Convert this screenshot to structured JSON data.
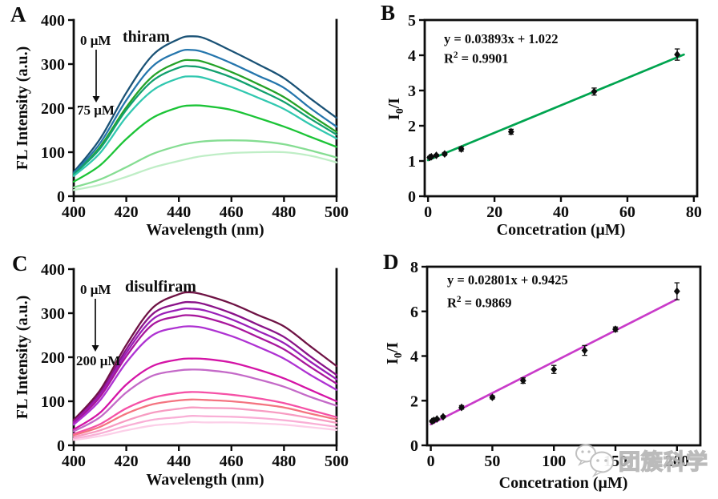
{
  "watermark": {
    "text": "团簇科学",
    "icon": "chat-bubbles-icon",
    "color": "#b6b6b6"
  },
  "panels": [
    {
      "label": "A",
      "title": "thiram",
      "conc_start": "0 μM",
      "conc_end": "75 μM",
      "xlabel": "Wavelength (nm)",
      "ylabel": "FL Intensity (a.u.)"
    },
    {
      "label": "B",
      "equation": "y = 0.03893x + 1.022",
      "r2_prefix": "R",
      "r2_sup": "2",
      "r2_rest": " = 0.9901",
      "xlabel": "Concetration (μM)",
      "ylabel_pre": "I",
      "ylabel_sub": "0",
      "ylabel_post": "/I"
    },
    {
      "label": "C",
      "title": "disulfiram",
      "conc_start": "0 μM",
      "conc_end": "200 μM",
      "xlabel": "Wavelength (nm)",
      "ylabel": "FL Intensity (a.u.)"
    },
    {
      "label": "D",
      "equation": "y = 0.02801x + 0.9425",
      "r2_prefix": "R",
      "r2_sup": "2",
      "r2_rest": " = 0.9869",
      "xlabel": "Concetration (μM)",
      "ylabel_pre": "I",
      "ylabel_sub": "0",
      "ylabel_post": "/I"
    }
  ],
  "chart_data": [
    {
      "id": "A",
      "type": "line",
      "title": "thiram",
      "xlabel": "Wavelength (nm)",
      "ylabel": "FL Intensity (a.u.)",
      "xlim": [
        400,
        500
      ],
      "ylim": [
        0,
        400
      ],
      "xticks": [
        400,
        420,
        440,
        460,
        480,
        500
      ],
      "yticks": [
        0,
        100,
        200,
        300,
        400
      ],
      "annotation": "0 μM to 75 μM, intensity decreasing",
      "x": [
        400,
        410,
        420,
        430,
        440,
        445,
        450,
        460,
        470,
        480,
        490,
        500
      ],
      "series": [
        {
          "color": "#1a5276",
          "values": [
            55,
            130,
            235,
            320,
            357,
            363,
            358,
            330,
            300,
            268,
            222,
            178
          ]
        },
        {
          "color": "#2576ad",
          "values": [
            52,
            120,
            218,
            295,
            328,
            332,
            326,
            302,
            274,
            246,
            200,
            158
          ]
        },
        {
          "color": "#25a228",
          "values": [
            48,
            112,
            202,
            272,
            305,
            309,
            304,
            282,
            255,
            225,
            185,
            146
          ]
        },
        {
          "color": "#12a06e",
          "values": [
            50,
            108,
            196,
            262,
            292,
            295,
            290,
            270,
            243,
            214,
            176,
            140
          ]
        },
        {
          "color": "#32c8b0",
          "values": [
            46,
            98,
            180,
            240,
            268,
            272,
            268,
            248,
            224,
            198,
            163,
            131
          ]
        },
        {
          "color": "#1cc437",
          "values": [
            33,
            70,
            130,
            178,
            202,
            206,
            205,
            196,
            178,
            158,
            135,
            112
          ]
        },
        {
          "color": "#85dd92",
          "values": [
            20,
            38,
            66,
            96,
            115,
            121,
            125,
            127,
            125,
            118,
            104,
            88
          ]
        },
        {
          "color": "#bfeec6",
          "values": [
            14,
            26,
            44,
            65,
            80,
            87,
            92,
            98,
            100,
            100,
            92,
            77
          ]
        }
      ]
    },
    {
      "id": "B",
      "type": "scatter",
      "equation": "y = 0.03893x + 1.022",
      "r_squared": 0.9901,
      "xlabel": "Concetration (μM)",
      "ylabel": "I0/I",
      "xlim": [
        0,
        80
      ],
      "ylim": [
        0,
        5
      ],
      "xticks": [
        0,
        20,
        40,
        60,
        80
      ],
      "yticks": [
        0,
        1,
        2,
        3,
        4,
        5
      ],
      "fit_line": {
        "slope": 0.03893,
        "intercept": 1.022,
        "color": "#00a44f",
        "x_start": 0,
        "x_end": 77
      },
      "points": {
        "x": [
          0.5,
          1,
          2.5,
          5,
          10,
          25,
          50,
          75
        ],
        "y": [
          1.1,
          1.12,
          1.16,
          1.2,
          1.34,
          1.83,
          2.97,
          4.02
        ],
        "yerr": [
          0.03,
          0.03,
          0.03,
          0.04,
          0.06,
          0.07,
          0.1,
          0.16
        ]
      }
    },
    {
      "id": "C",
      "type": "line",
      "title": "disulfiram",
      "xlabel": "Wavelength (nm)",
      "ylabel": "FL Intensity (a.u.)",
      "xlim": [
        400,
        500
      ],
      "ylim": [
        0,
        400
      ],
      "xticks": [
        400,
        420,
        440,
        460,
        480,
        500
      ],
      "yticks": [
        0,
        100,
        200,
        300,
        400
      ],
      "annotation": "0 μM to 200 μM, intensity decreasing",
      "x": [
        400,
        410,
        420,
        430,
        440,
        445,
        450,
        460,
        470,
        480,
        490,
        500
      ],
      "series": [
        {
          "color": "#6e1244",
          "values": [
            58,
            125,
            228,
            312,
            343,
            347,
            341,
            322,
            296,
            270,
            225,
            180
          ]
        },
        {
          "color": "#8a1389",
          "values": [
            54,
            118,
            218,
            298,
            322,
            325,
            320,
            300,
            274,
            246,
            202,
            160
          ]
        },
        {
          "color": "#9a1fb8",
          "values": [
            52,
            114,
            210,
            286,
            308,
            310,
            306,
            286,
            260,
            232,
            190,
            150
          ]
        },
        {
          "color": "#a8169c",
          "values": [
            50,
            110,
            202,
            274,
            293,
            295,
            290,
            272,
            246,
            218,
            178,
            140
          ]
        },
        {
          "color": "#ae32d2",
          "values": [
            47,
            102,
            188,
            250,
            268,
            270,
            266,
            248,
            224,
            197,
            160,
            126
          ]
        },
        {
          "color": "#d414a6",
          "values": [
            36,
            74,
            138,
            180,
            195,
            197,
            196,
            188,
            172,
            152,
            126,
            100
          ]
        },
        {
          "color": "#c46ac8",
          "values": [
            32,
            64,
            120,
            158,
            170,
            172,
            171,
            164,
            150,
            133,
            110,
            90
          ]
        },
        {
          "color": "#f551a6",
          "values": [
            26,
            48,
            84,
            108,
            119,
            121,
            120,
            115,
            107,
            96,
            80,
            64
          ]
        },
        {
          "color": "#f47480",
          "values": [
            23,
            42,
            72,
            93,
            102,
            104,
            103,
            100,
            94,
            86,
            72,
            59
          ]
        },
        {
          "color": "#f79cc2",
          "values": [
            19,
            34,
            56,
            74,
            83,
            86,
            85,
            84,
            79,
            72,
            62,
            51
          ]
        },
        {
          "color": "#f9afd6",
          "values": [
            15,
            27,
            44,
            58,
            64,
            67,
            66,
            65,
            62,
            57,
            50,
            42
          ]
        },
        {
          "color": "#fccfe8",
          "values": [
            12,
            21,
            34,
            45,
            50,
            53,
            52,
            52,
            50,
            47,
            41,
            35
          ]
        }
      ]
    },
    {
      "id": "D",
      "type": "scatter",
      "equation": "y = 0.02801x + 0.9425",
      "r_squared": 0.9869,
      "xlabel": "Concetration (μM)",
      "ylabel": "I0/I",
      "xlim": [
        0,
        200
      ],
      "ylim": [
        0,
        8
      ],
      "xticks": [
        0,
        50,
        100,
        150,
        200
      ],
      "yticks": [
        0,
        2,
        4,
        6,
        8
      ],
      "fit_line": {
        "slope": 0.02801,
        "intercept": 0.9425,
        "color": "#c93bc9",
        "x_start": 0,
        "x_end": 200
      },
      "points": {
        "x": [
          1,
          2.5,
          5,
          10,
          25,
          50,
          75,
          100,
          125,
          150,
          200
        ],
        "y": [
          1.08,
          1.12,
          1.18,
          1.28,
          1.7,
          2.15,
          2.9,
          3.4,
          4.25,
          5.2,
          6.9
        ],
        "yerr": [
          0.04,
          0.04,
          0.04,
          0.05,
          0.08,
          0.07,
          0.12,
          0.18,
          0.22,
          0.1,
          0.38
        ]
      }
    }
  ]
}
